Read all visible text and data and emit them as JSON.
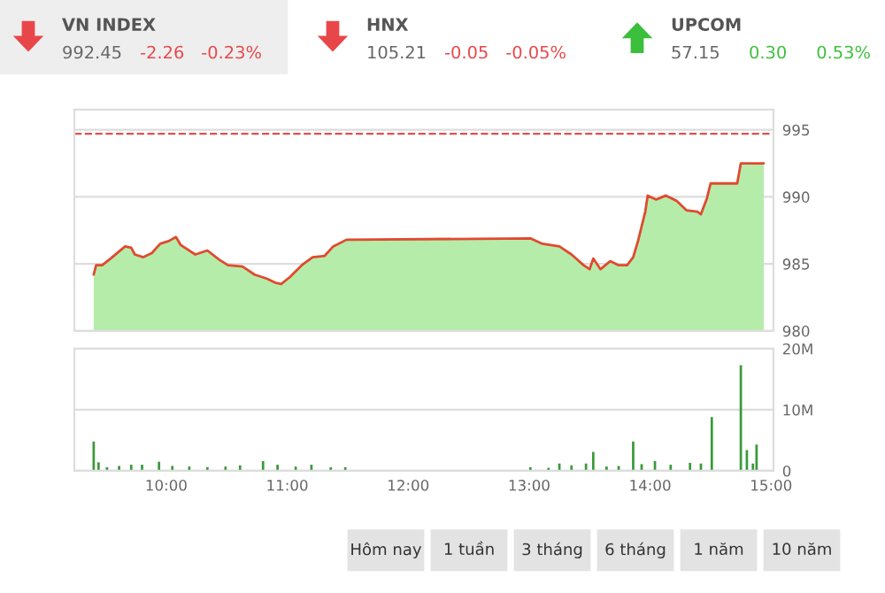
{
  "chart_data": [
    {
      "type": "other",
      "annotations": [
        "VN INDEX",
        "992.45",
        "-2.26",
        "-0.23%",
        "HNX",
        "105.21",
        "-0.05",
        "-0.05%",
        "UPCOM",
        "57.15",
        "0.30",
        "0.53%"
      ],
      "colors": [
        "#555555",
        "#666666",
        "#e8474a",
        "#e8474a",
        "#555555",
        "#666666",
        "#e8474a",
        "#e8474a",
        "#555555",
        "#666666",
        "#3cbf3c",
        "#3cbf3c"
      ]
    },
    {
      "type": "area",
      "xlim": [
        9.24,
        15.02
      ],
      "ylim": [
        980,
        996.5
      ],
      "yticks": [
        980,
        985,
        990,
        995
      ],
      "grid": "y",
      "tick_labels": "y",
      "ref_lines": [
        {
          "axis": "y",
          "value": 994.71,
          "color": "#e05050",
          "line_style": "dashed"
        }
      ],
      "series": [
        {
          "color": "#b6ecaa",
          "x": [
            9.4,
            9.42,
            9.47,
            9.54,
            9.66,
            9.71,
            9.74,
            9.81,
            9.88,
            9.95,
            10.02,
            10.08,
            10.12,
            10.24,
            10.34,
            10.44,
            10.51,
            10.63,
            10.73,
            10.83,
            10.9,
            10.95,
            11.02,
            11.12,
            11.21,
            11.31,
            11.38,
            11.49,
            13.01,
            13.11,
            13.25,
            13.35,
            13.45,
            13.5,
            13.53,
            13.59,
            13.67,
            13.74,
            13.81,
            13.86,
            13.9,
            13.96,
            13.98,
            14.05,
            14.13,
            14.22,
            14.3,
            14.39,
            14.42,
            14.47,
            14.5,
            14.72,
            14.75,
            14.94
          ],
          "values": [
            984.2,
            984.9,
            984.9,
            985.4,
            986.3,
            986.2,
            985.7,
            985.5,
            985.8,
            986.5,
            986.7,
            987.0,
            986.4,
            985.7,
            986.0,
            985.3,
            984.9,
            984.8,
            984.2,
            983.9,
            983.6,
            983.5,
            984.0,
            984.9,
            985.5,
            985.6,
            986.3,
            986.8,
            986.9,
            986.5,
            986.3,
            985.7,
            984.9,
            984.6,
            985.4,
            984.6,
            985.2,
            984.9,
            984.9,
            985.5,
            986.7,
            988.9,
            990.1,
            989.8,
            990.1,
            989.7,
            989.0,
            988.9,
            988.7,
            989.9,
            991.0,
            991.0,
            992.5,
            992.5
          ]
        },
        {
          "type": "line",
          "color": "#e04a2f",
          "x": [
            9.4,
            9.42,
            9.47,
            9.54,
            9.66,
            9.71,
            9.74,
            9.81,
            9.88,
            9.95,
            10.02,
            10.08,
            10.12,
            10.24,
            10.34,
            10.44,
            10.51,
            10.63,
            10.73,
            10.83,
            10.9,
            10.95,
            11.02,
            11.12,
            11.21,
            11.31,
            11.38,
            11.49,
            13.01,
            13.11,
            13.25,
            13.35,
            13.45,
            13.5,
            13.53,
            13.59,
            13.67,
            13.74,
            13.81,
            13.86,
            13.9,
            13.96,
            13.98,
            14.05,
            14.13,
            14.22,
            14.3,
            14.39,
            14.42,
            14.47,
            14.5,
            14.72,
            14.75,
            14.94
          ],
          "values": [
            984.2,
            984.9,
            984.9,
            985.4,
            986.3,
            986.2,
            985.7,
            985.5,
            985.8,
            986.5,
            986.7,
            987.0,
            986.4,
            985.7,
            986.0,
            985.3,
            984.9,
            984.8,
            984.2,
            983.9,
            983.6,
            983.5,
            984.0,
            984.9,
            985.5,
            985.6,
            986.3,
            986.8,
            986.9,
            986.5,
            986.3,
            985.7,
            984.9,
            984.6,
            985.4,
            984.6,
            985.2,
            984.9,
            984.9,
            985.5,
            986.7,
            988.9,
            990.1,
            989.8,
            990.1,
            989.7,
            989.0,
            988.9,
            988.7,
            989.9,
            991.0,
            991.0,
            992.5,
            992.5
          ]
        }
      ]
    },
    {
      "type": "bar",
      "xlim": [
        9.24,
        15.02
      ],
      "ylim": [
        0,
        20
      ],
      "grid": "y",
      "xticks": [
        {
          "value": 10,
          "label": "10:00"
        },
        {
          "value": 11,
          "label": "11:00"
        },
        {
          "value": 12,
          "label": "12:00"
        },
        {
          "value": 13,
          "label": "13:00"
        },
        {
          "value": 14,
          "label": "14:00"
        },
        {
          "value": 15,
          "label": "15:00"
        }
      ],
      "yticks": [
        {
          "value": 0,
          "label": "0"
        },
        {
          "value": 10,
          "label": "10M"
        },
        {
          "value": 20,
          "label": "20M"
        }
      ],
      "series": [
        {
          "color": "#3a9a3a",
          "x": [
            9.4,
            9.44,
            9.51,
            9.61,
            9.71,
            9.8,
            9.94,
            10.05,
            10.19,
            10.34,
            10.49,
            10.61,
            10.8,
            10.92,
            11.07,
            11.2,
            11.36,
            11.48,
            13.01,
            13.16,
            13.25,
            13.35,
            13.47,
            13.53,
            13.64,
            13.74,
            13.86,
            13.93,
            14.04,
            14.17,
            14.33,
            14.42,
            14.51,
            14.75,
            14.8,
            14.85,
            14.88
          ],
          "values": [
            4.8,
            1.4,
            0.6,
            0.8,
            1.0,
            1.0,
            1.5,
            0.8,
            0.7,
            0.6,
            0.7,
            0.9,
            1.6,
            1.0,
            0.7,
            1.0,
            0.6,
            0.6,
            0.6,
            0.5,
            1.2,
            0.9,
            1.2,
            3.1,
            0.7,
            0.8,
            4.8,
            1.1,
            1.6,
            1.0,
            1.3,
            1.2,
            8.8,
            17.3,
            3.4,
            1.2,
            4.3
          ]
        }
      ]
    },
    {
      "type": "other",
      "annotations": [
        "Hôm nay",
        "1 tuần",
        "3 tháng",
        "6 tháng",
        "1 năm",
        "10 năm"
      ]
    }
  ]
}
